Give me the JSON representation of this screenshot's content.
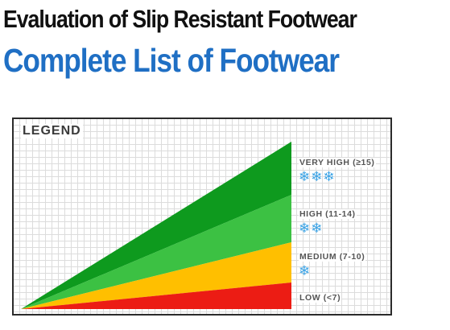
{
  "header": {
    "title": "Evaluation of Slip Resistant Footwear",
    "subtitle": "Complete List of Footwear"
  },
  "legend": {
    "heading": "LEGEND",
    "levels": [
      {
        "label": "VERY HIGH (≥15)",
        "snowflakes": "❄❄❄",
        "color": "#0e9a1e"
      },
      {
        "label": "HIGH (11-14)",
        "snowflakes": "❄❄",
        "color": "#3cc143"
      },
      {
        "label": "MEDIUM (7-10)",
        "snowflakes": "❄",
        "color": "#ffbf00"
      },
      {
        "label": "LOW (<7)",
        "snowflakes": "",
        "color": "#ec1c14"
      }
    ]
  }
}
